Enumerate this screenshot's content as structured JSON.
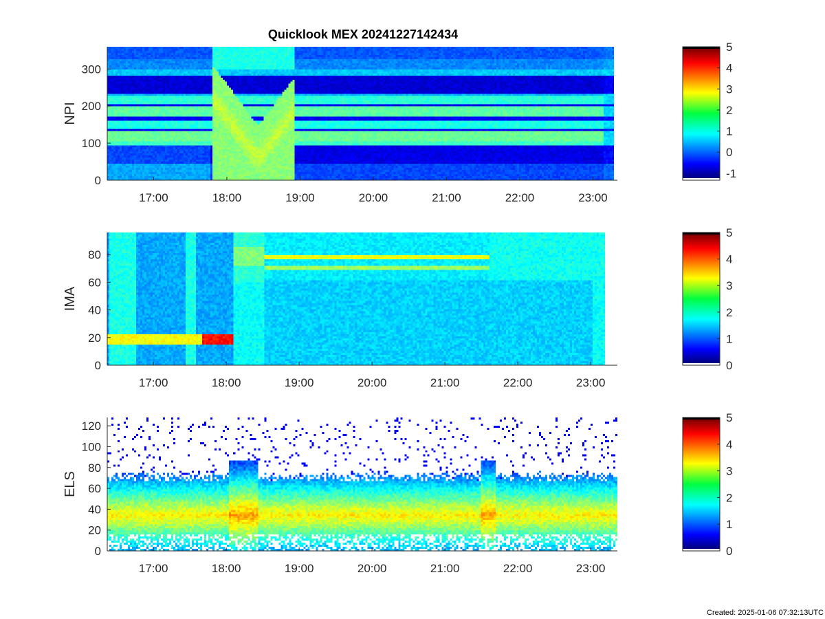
{
  "title": "Quicklook MEX 20241227142434",
  "created": "Created: 2025-01-06 07:32:13UTC",
  "chart_data": [
    {
      "type": "heatmap",
      "name": "NPI",
      "ylabel": "NPI",
      "xlim": [
        "16:22",
        "23:20"
      ],
      "ylim": [
        0,
        360
      ],
      "xticks": [
        "17:00",
        "18:00",
        "19:00",
        "20:00",
        "21:00",
        "22:00",
        "23:00"
      ],
      "yticks": [
        0,
        100,
        200,
        300
      ],
      "colorbar": {
        "range": [
          -1.33,
          5
        ],
        "ticks": [
          -1,
          0,
          1,
          2,
          3,
          4,
          5
        ]
      }
    },
    {
      "type": "heatmap",
      "name": "IMA",
      "ylabel": "IMA",
      "xlim": [
        "16:22",
        "23:22"
      ],
      "ylim": [
        0,
        96
      ],
      "xticks": [
        "17:00",
        "18:00",
        "19:00",
        "20:00",
        "21:00",
        "22:00",
        "23:00"
      ],
      "yticks": [
        0,
        20,
        40,
        60,
        80
      ],
      "colorbar": {
        "range": [
          0,
          5
        ],
        "ticks": [
          0,
          1,
          2,
          3,
          4,
          5
        ]
      }
    },
    {
      "type": "heatmap",
      "name": "ELS",
      "ylabel": "ELS",
      "xlim": [
        "16:22",
        "23:22"
      ],
      "ylim": [
        0,
        128
      ],
      "xticks": [
        "17:00",
        "18:00",
        "19:00",
        "20:00",
        "21:00",
        "22:00",
        "23:00"
      ],
      "yticks": [
        0,
        20,
        40,
        60,
        80,
        100,
        120
      ],
      "colorbar": {
        "range": [
          0,
          5
        ],
        "ticks": [
          0,
          1,
          2,
          3,
          4,
          5
        ]
      }
    }
  ]
}
